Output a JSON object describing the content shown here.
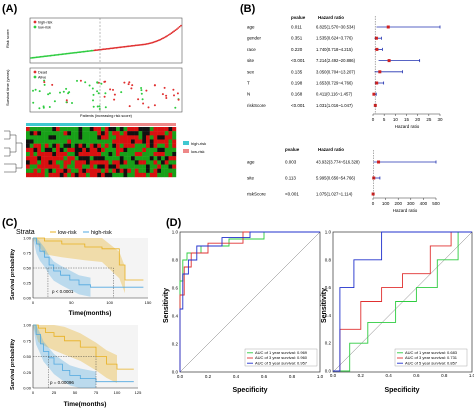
{
  "panels": {
    "A": "(A)",
    "B": "(B)",
    "C": "(C)",
    "D": "(D)"
  },
  "panelA": {
    "legend_high": "high-risk",
    "legend_low": "low-risk",
    "legend_dead": "Dead",
    "legend_alive": "Alive",
    "risk_ylabel": "Risk score",
    "surv_ylabel": "Survival time (years)",
    "xlabel": "Patients (increasing risk score)",
    "heat_legend_high": "high-risk",
    "heat_legend_low": "low-risk"
  },
  "panelB": {
    "forest1": {
      "pvalue_header": "pvalue",
      "hr_header": "Hazard ratio",
      "xlabel": "Hazard ratio",
      "ticks": [
        "0",
        "5",
        "10",
        "15",
        "20",
        "25",
        "30"
      ],
      "rows": [
        {
          "name": "age",
          "p": "0.011",
          "hr": "6.825(1.570~30.534)"
        },
        {
          "name": "gender",
          "p": "0.351",
          "hr": "1.535(0.624~3.776)"
        },
        {
          "name": "race",
          "p": "0.220",
          "hr": "1.740(0.718~4.215)"
        },
        {
          "name": "site",
          "p": "<0.001",
          "hr": "7.214(2.492~20.886)"
        },
        {
          "name": "sex",
          "p": "0.135",
          "hr": "3.050(0.704~13.207)"
        },
        {
          "name": "T",
          "p": "0.198",
          "hr": "1.653(0.729~4.766)"
        },
        {
          "name": "N",
          "p": "0.168",
          "hr": "0.411(0.116~1.457)"
        },
        {
          "name": "riskScore",
          "p": "<0.001",
          "hr": "1.031(1.016~1.047)"
        }
      ]
    },
    "forest2": {
      "pvalue_header": "pvalue",
      "hr_header": "Hazard ratio",
      "xlabel": "Hazard ratio",
      "ticks": [
        "0",
        "100",
        "200",
        "300",
        "400",
        "500"
      ],
      "rows": [
        {
          "name": "age",
          "p": "0.003",
          "hr": "43.932(3.774~516.328)"
        },
        {
          "name": "site",
          "p": "0.113",
          "hr": "5.995(0.656~54.766)"
        },
        {
          "name": "riskScore",
          "p": "<0.001",
          "hr": "1.075(1.027~1.114)"
        }
      ]
    }
  },
  "panelC": {
    "strata_label": "Strata",
    "legend_low": "low-risk",
    "legend_high": "high-risk",
    "ylabel": "Survival probability",
    "xlabel": "Time(months)",
    "top": {
      "pvalue": "p < 0.0001",
      "yticks": [
        "1.00",
        "0.75",
        "0.50",
        "0.25",
        "0.00"
      ],
      "xticks": [
        "0",
        "50",
        "100",
        "150"
      ]
    },
    "bottom": {
      "pvalue": "p = 0.00096",
      "yticks": [
        "1.00",
        "0.75",
        "0.50",
        "0.25",
        "0.00"
      ],
      "xticks": [
        "0",
        "25",
        "50",
        "75",
        "100",
        "125"
      ]
    }
  },
  "panelD": {
    "ylabel": "Sensitivity",
    "xlabel": "Specificity",
    "ticks": [
      "0.0",
      "0.2",
      "0.4",
      "0.6",
      "0.8",
      "1.0"
    ],
    "left_legend": [
      {
        "label": "AUC of 1 year survival: 0.969",
        "color": "#2ecc40"
      },
      {
        "label": "AUC of 3 year survival: 0.960",
        "color": "#e03030"
      },
      {
        "label": "AUC of 5 year survival: 0.957",
        "color": "#2030cc"
      }
    ],
    "right_legend": [
      {
        "label": "AUC of 1 year survival: 0.683",
        "color": "#2ecc40"
      },
      {
        "label": "AUC of 3 year survival: 0.731",
        "color": "#e03030"
      },
      {
        "label": "AUC of 5 year survival: 0.857",
        "color": "#2030cc"
      }
    ]
  }
}
